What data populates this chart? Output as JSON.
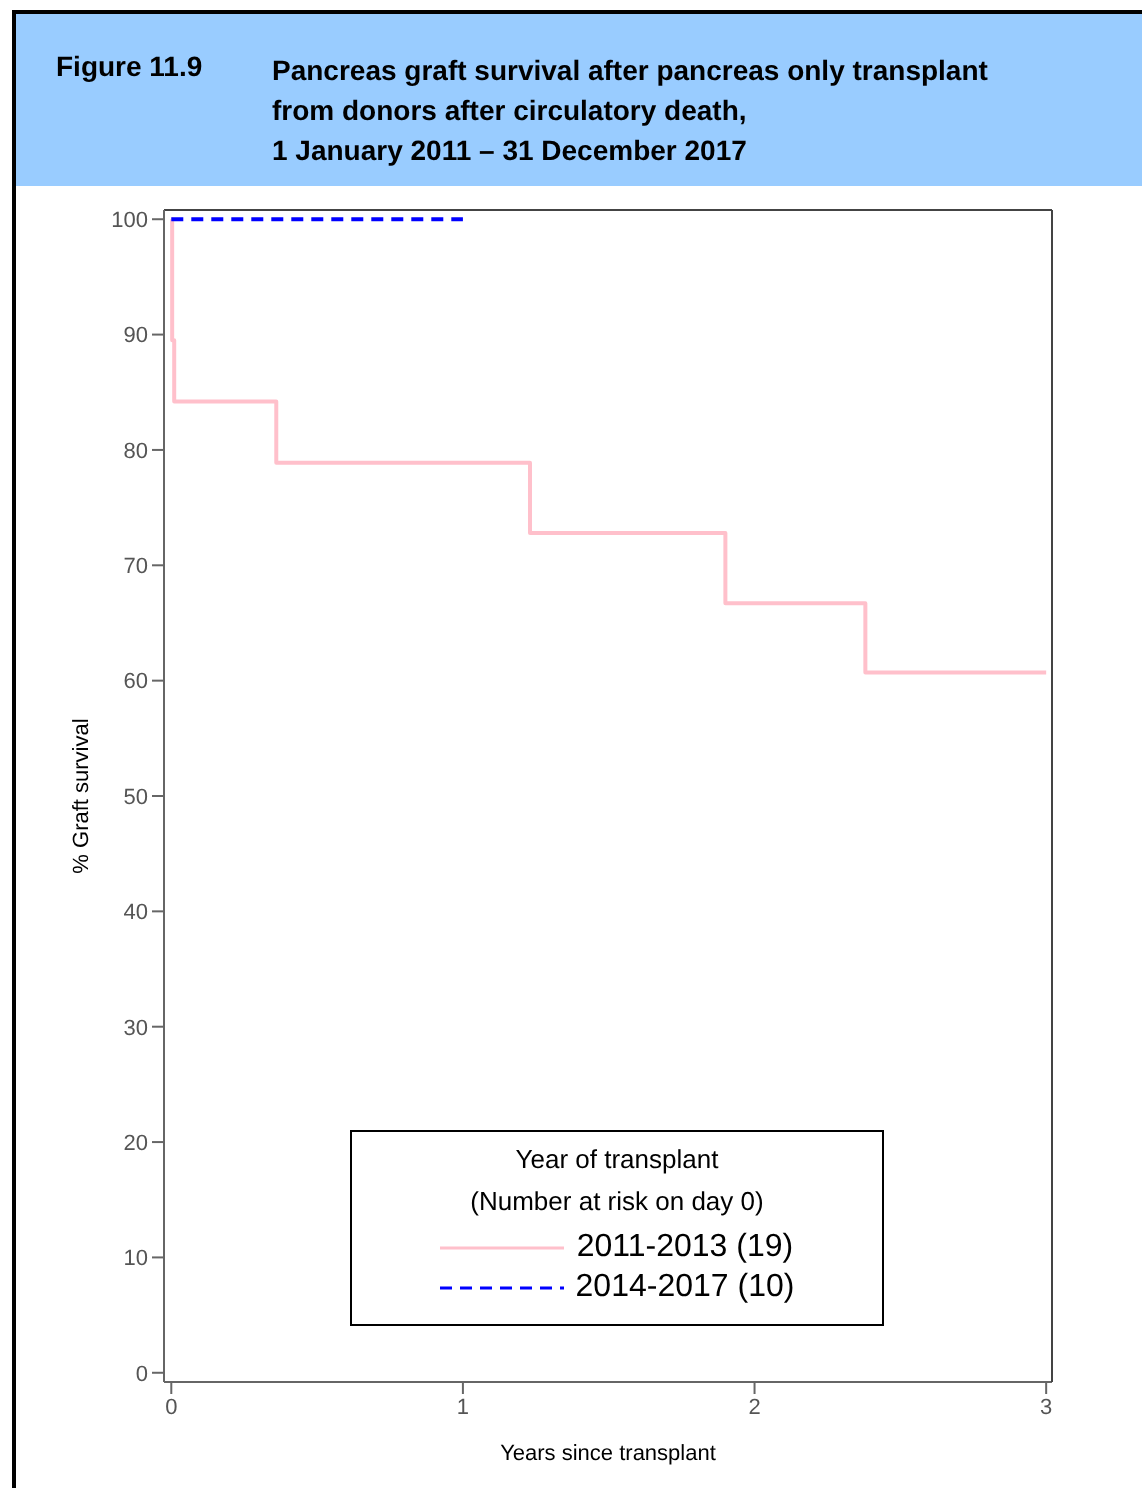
{
  "chart_data": {
    "type": "step",
    "title": "Pancreas graft survival after pancreas only transplant\nfrom donors after circulatory death,\n1 January 2011 – 31 December 2017",
    "annotations": [
      "Figure 11.9"
    ],
    "xlabel": "Years since transplant",
    "ylabel": "% Graft survival",
    "legend_title": "Year of transplant\n(Number at risk on day 0)",
    "legend": "bottom",
    "grid": false,
    "marker": "none",
    "xlim": [
      -0.025,
      3.02
    ],
    "xticks": [
      0,
      1,
      2,
      3
    ],
    "ylim": [
      -0.8,
      100.8
    ],
    "yticks": [
      0,
      10,
      20,
      30,
      40,
      50,
      60,
      70,
      80,
      90,
      100
    ],
    "series": [
      {
        "name": "2011-2013 (19)",
        "color": "#ffc0cb",
        "line_style": "solid",
        "x": [
          0,
          0.003,
          0.01,
          0.36,
          1.23,
          1.9,
          2.38,
          3
        ],
        "values": [
          100,
          89.5,
          84.2,
          78.9,
          72.8,
          66.7,
          60.7,
          60.7
        ]
      },
      {
        "name": "2014-2017 (10)",
        "color": "#0000ff",
        "line_style": "dashed",
        "x": [
          0,
          1
        ],
        "values": [
          100,
          100
        ]
      }
    ]
  }
}
